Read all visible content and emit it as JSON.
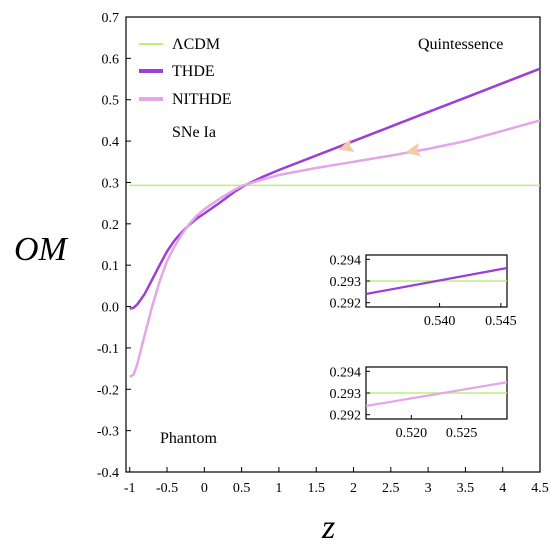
{
  "chart_data": {
    "type": "line",
    "xlabel": "z",
    "ylabel": "OM",
    "xlim": [
      -1.05,
      4.5
    ],
    "ylim": [
      -0.4,
      0.7
    ],
    "x_ticks": [
      "-1",
      "-0.5",
      "0",
      "0.5",
      "1",
      "1.5",
      "2",
      "2.5",
      "3",
      "3.5",
      "4",
      "4.5"
    ],
    "y_ticks": [
      "-0.4",
      "-0.3",
      "-0.2",
      "-0.1",
      "0.0",
      "0.1",
      "0.2",
      "0.3",
      "0.4",
      "0.5",
      "0.6",
      "0.7"
    ],
    "legend_position": "top-left",
    "colors": {
      "lcdm": "#b9f27a",
      "thde": "#9c3fd6",
      "nithde": "#e3a6e6",
      "arrow": "#f7c9a8"
    },
    "legend": [
      "ΛCDM",
      "THDE",
      "NITHDE"
    ],
    "annotations": {
      "quintessence": "Quintessence",
      "sne": "SNe Ia",
      "phantom": "Phantom"
    },
    "series": [
      {
        "name": "ΛCDM",
        "x": [
          -1.0,
          4.5
        ],
        "y": [
          0.293,
          0.293
        ]
      },
      {
        "name": "THDE",
        "x": [
          -1.0,
          -0.95,
          -0.9,
          -0.8,
          -0.7,
          -0.6,
          -0.5,
          -0.4,
          -0.3,
          -0.2,
          -0.1,
          0.0,
          0.2,
          0.4,
          0.54,
          0.8,
          1.0,
          1.5,
          2.0,
          2.5,
          3.0,
          3.5,
          4.0,
          4.5
        ],
        "y": [
          -0.005,
          -0.003,
          0.005,
          0.03,
          0.065,
          0.1,
          0.133,
          0.16,
          0.18,
          0.198,
          0.213,
          0.225,
          0.25,
          0.277,
          0.293,
          0.315,
          0.33,
          0.365,
          0.4,
          0.435,
          0.47,
          0.505,
          0.54,
          0.575
        ]
      },
      {
        "name": "NITHDE",
        "x": [
          -1.0,
          -0.95,
          -0.9,
          -0.8,
          -0.7,
          -0.6,
          -0.5,
          -0.4,
          -0.3,
          -0.2,
          -0.1,
          0.0,
          0.2,
          0.4,
          0.52,
          0.8,
          1.0,
          1.5,
          2.0,
          2.5,
          3.0,
          3.5,
          4.0,
          4.5
        ],
        "y": [
          -0.17,
          -0.165,
          -0.14,
          -0.07,
          0.0,
          0.06,
          0.11,
          0.145,
          0.175,
          0.2,
          0.22,
          0.235,
          0.26,
          0.282,
          0.293,
          0.308,
          0.318,
          0.335,
          0.35,
          0.365,
          0.381,
          0.4,
          0.425,
          0.45
        ]
      }
    ],
    "insets": [
      {
        "x_ticks": [
          "0.540",
          "0.545"
        ],
        "y_ticks": [
          "0.292",
          "0.293",
          "0.294"
        ],
        "xlim": [
          0.534,
          0.5455
        ],
        "ylim": [
          0.2918,
          0.2942
        ],
        "series": [
          {
            "name": "ΛCDM",
            "x": [
              0.534,
              0.5455
            ],
            "y": [
              0.293,
              0.293
            ]
          },
          {
            "name": "THDE",
            "x": [
              0.534,
              0.5455
            ],
            "y": [
              0.2924,
              0.2936
            ]
          }
        ]
      },
      {
        "x_ticks": [
          "0.520",
          "0.525"
        ],
        "y_ticks": [
          "0.292",
          "0.293",
          "0.294"
        ],
        "xlim": [
          0.5155,
          0.5295
        ],
        "ylim": [
          0.2918,
          0.2942
        ],
        "series": [
          {
            "name": "ΛCDM",
            "x": [
              0.5155,
              0.5295
            ],
            "y": [
              0.293,
              0.293
            ]
          },
          {
            "name": "NITHDE",
            "x": [
              0.5155,
              0.5295
            ],
            "y": [
              0.2924,
              0.2935
            ]
          }
        ]
      }
    ]
  }
}
